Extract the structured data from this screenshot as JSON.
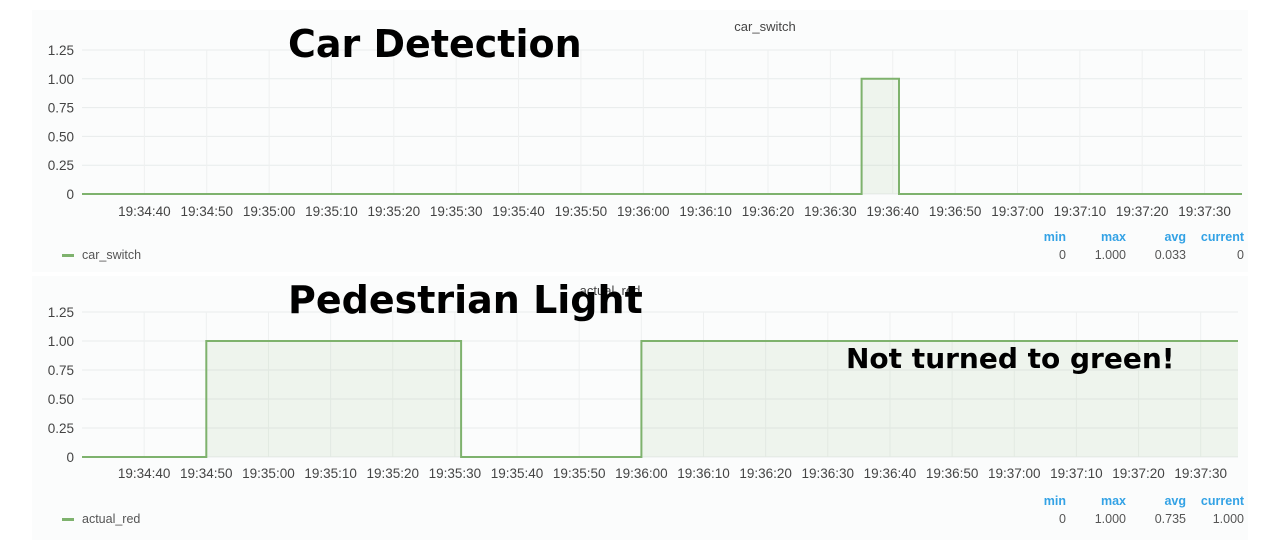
{
  "overlays": {
    "car_title": "Car Detection",
    "ped_title": "Pedestrian Light",
    "note": "Not turned to green!"
  },
  "series_color": "#7eb26d",
  "chart_data": [
    {
      "type": "area",
      "title": "car_switch",
      "xlabel": "",
      "ylabel": "",
      "ylim": [
        0,
        1.25
      ],
      "yticks": [
        "0",
        "0.25",
        "0.50",
        "0.75",
        "1.00",
        "1.25"
      ],
      "x_ticks": [
        "19:34:40",
        "19:34:50",
        "19:35:00",
        "19:35:10",
        "19:35:20",
        "19:35:30",
        "19:35:40",
        "19:35:50",
        "19:36:00",
        "19:36:10",
        "19:36:20",
        "19:36:30",
        "19:36:40",
        "19:36:50",
        "19:37:00",
        "19:37:10",
        "19:37:20",
        "19:37:30"
      ],
      "x_range": [
        "19:34:30",
        "19:37:36"
      ],
      "grid": true,
      "legend": "bottom-left",
      "series": [
        {
          "name": "car_switch",
          "points": [
            [
              "19:34:30",
              0
            ],
            [
              "19:36:35",
              0
            ],
            [
              "19:36:35",
              1
            ],
            [
              "19:36:41",
              1
            ],
            [
              "19:36:41",
              0
            ],
            [
              "19:37:36",
              0
            ]
          ]
        }
      ],
      "stats": {
        "headers": [
          "min",
          "max",
          "avg",
          "current"
        ],
        "values": [
          "0",
          "1.000",
          "0.033",
          "0"
        ]
      }
    },
    {
      "type": "area",
      "title": "actual_red",
      "xlabel": "",
      "ylabel": "",
      "ylim": [
        0,
        1.25
      ],
      "yticks": [
        "0",
        "0.25",
        "0.50",
        "0.75",
        "1.00",
        "1.25"
      ],
      "x_ticks": [
        "19:34:40",
        "19:34:50",
        "19:35:00",
        "19:35:10",
        "19:35:20",
        "19:35:30",
        "19:35:40",
        "19:35:50",
        "19:36:00",
        "19:36:10",
        "19:36:20",
        "19:36:30",
        "19:36:40",
        "19:36:50",
        "19:37:00",
        "19:37:10",
        "19:37:20",
        "19:37:30"
      ],
      "x_range": [
        "19:34:30",
        "19:37:36"
      ],
      "grid": true,
      "legend": "bottom-left",
      "series": [
        {
          "name": "actual_red",
          "points": [
            [
              "19:34:30",
              0
            ],
            [
              "19:34:50",
              0
            ],
            [
              "19:34:50",
              1
            ],
            [
              "19:35:31",
              1
            ],
            [
              "19:35:31",
              0
            ],
            [
              "19:36:00",
              0
            ],
            [
              "19:36:00",
              1
            ],
            [
              "19:37:36",
              1
            ]
          ]
        }
      ],
      "stats": {
        "headers": [
          "min",
          "max",
          "avg",
          "current"
        ],
        "values": [
          "0",
          "1.000",
          "0.735",
          "1.000"
        ]
      }
    }
  ]
}
